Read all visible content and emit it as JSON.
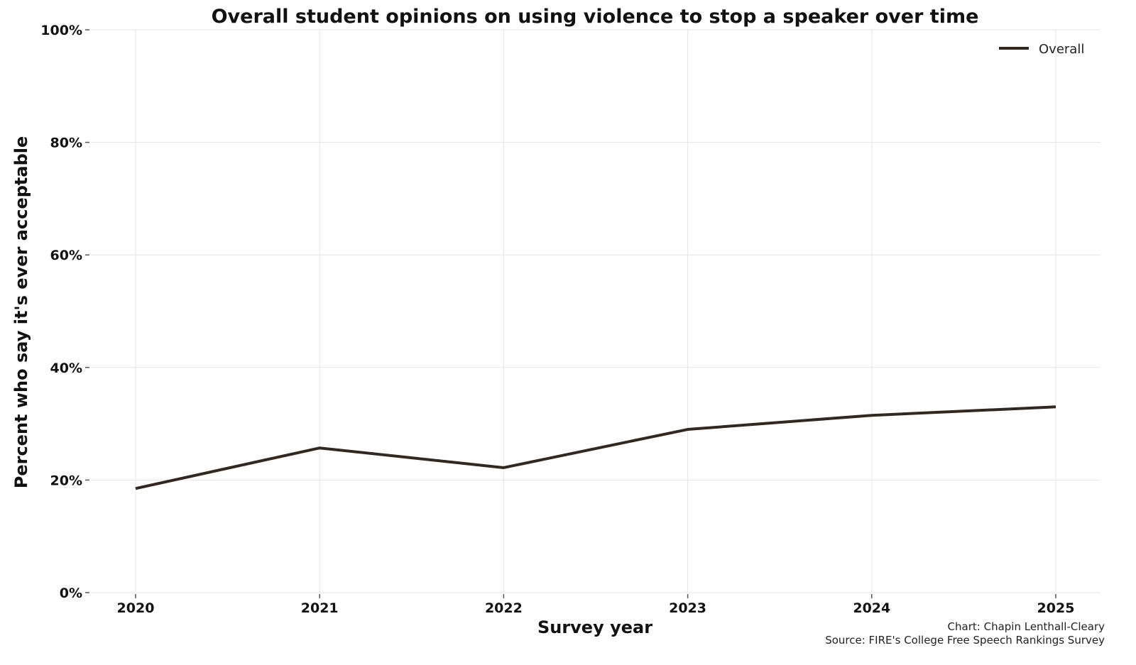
{
  "chart_data": {
    "type": "line",
    "title": "Overall student opinions on using violence to stop a speaker over time",
    "xlabel": "Survey year",
    "ylabel": "Percent who say it's ever acceptable",
    "x": [
      2020,
      2021,
      2022,
      2023,
      2024,
      2025
    ],
    "x_tick_labels": [
      "2020",
      "2021",
      "2022",
      "2023",
      "2024",
      "2025"
    ],
    "y_ticks": [
      0,
      20,
      40,
      60,
      80,
      100
    ],
    "y_tick_labels": [
      "0%",
      "20%",
      "40%",
      "60%",
      "80%",
      "100%"
    ],
    "ylim": [
      0,
      100
    ],
    "grid": true,
    "legend_position": "top-right",
    "series": [
      {
        "name": "Overall",
        "color": "#33271e",
        "values": [
          18.5,
          25.7,
          22.2,
          29.0,
          31.5,
          33.0
        ]
      }
    ],
    "credits": {
      "chart": "Chart: Chapin Lenthall-Cleary",
      "source": "Source: FIRE's College Free Speech Rankings Survey"
    }
  }
}
